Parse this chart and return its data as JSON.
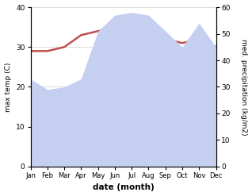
{
  "months": [
    "Jan",
    "Feb",
    "Mar",
    "Apr",
    "May",
    "Jun",
    "Jul",
    "Aug",
    "Sep",
    "Oct",
    "Nov",
    "Dec"
  ],
  "temp": [
    29,
    29,
    30,
    33,
    34,
    35,
    33,
    34,
    32,
    31,
    32,
    30
  ],
  "precip": [
    33,
    29,
    30,
    33,
    51,
    57,
    58,
    57,
    51,
    45,
    54,
    45
  ],
  "temp_color": "#c0504d",
  "precip_fill_color": "#c5cff0",
  "temp_ylim": [
    0,
    40
  ],
  "precip_ylim": [
    0,
    60
  ],
  "temp_yticks": [
    0,
    10,
    20,
    30,
    40
  ],
  "precip_yticks": [
    0,
    10,
    20,
    30,
    40,
    50,
    60
  ],
  "xlabel": "date (month)",
  "ylabel_left": "max temp (C)",
  "ylabel_right": "med. precipitation (kg/m2)",
  "background_color": "#ffffff",
  "grid_color": "#cccccc"
}
